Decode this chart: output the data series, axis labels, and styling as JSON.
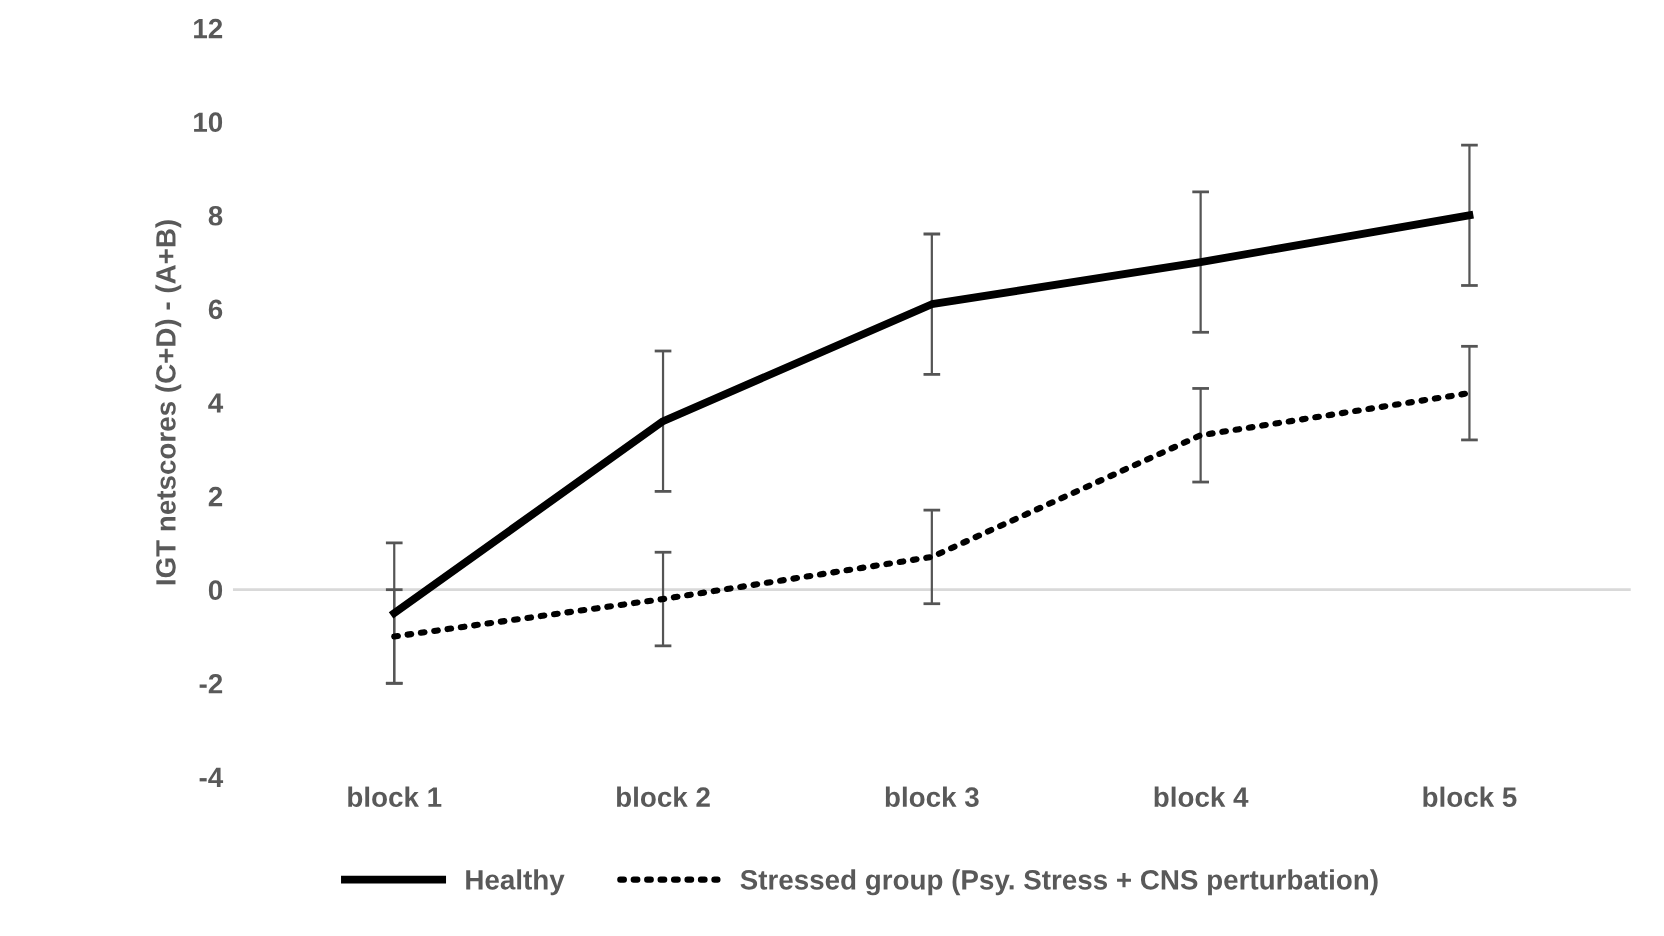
{
  "chart_data": {
    "type": "line",
    "ylabel": "IGT netscores (C+D) - (A+B)",
    "categories": [
      "block 1",
      "block 2",
      "block 3",
      "block 4",
      "block 5"
    ],
    "series": [
      {
        "name": "Healthy",
        "color": "#000000",
        "line_style": "solid",
        "values": [
          -0.5,
          3.6,
          6.1,
          7.0,
          8.0
        ],
        "errors": [
          1.5,
          1.5,
          1.5,
          1.5,
          1.5
        ]
      },
      {
        "name": "Stressed group (Psy. Stress + CNS perturbation)",
        "color": "#000000",
        "line_style": "dotted",
        "values": [
          -1.0,
          -0.2,
          0.7,
          3.3,
          4.2
        ],
        "errors": [
          1,
          1,
          1,
          1,
          1
        ]
      }
    ],
    "ylim": [
      -4,
      12
    ],
    "yticks": [
      -4,
      -2,
      0,
      2,
      4,
      6,
      8,
      10,
      12
    ],
    "legend": "bottom",
    "grid": false,
    "ref_lines": [
      {
        "axis": "y",
        "value": 0,
        "color": "#d9d9d9"
      }
    ]
  }
}
